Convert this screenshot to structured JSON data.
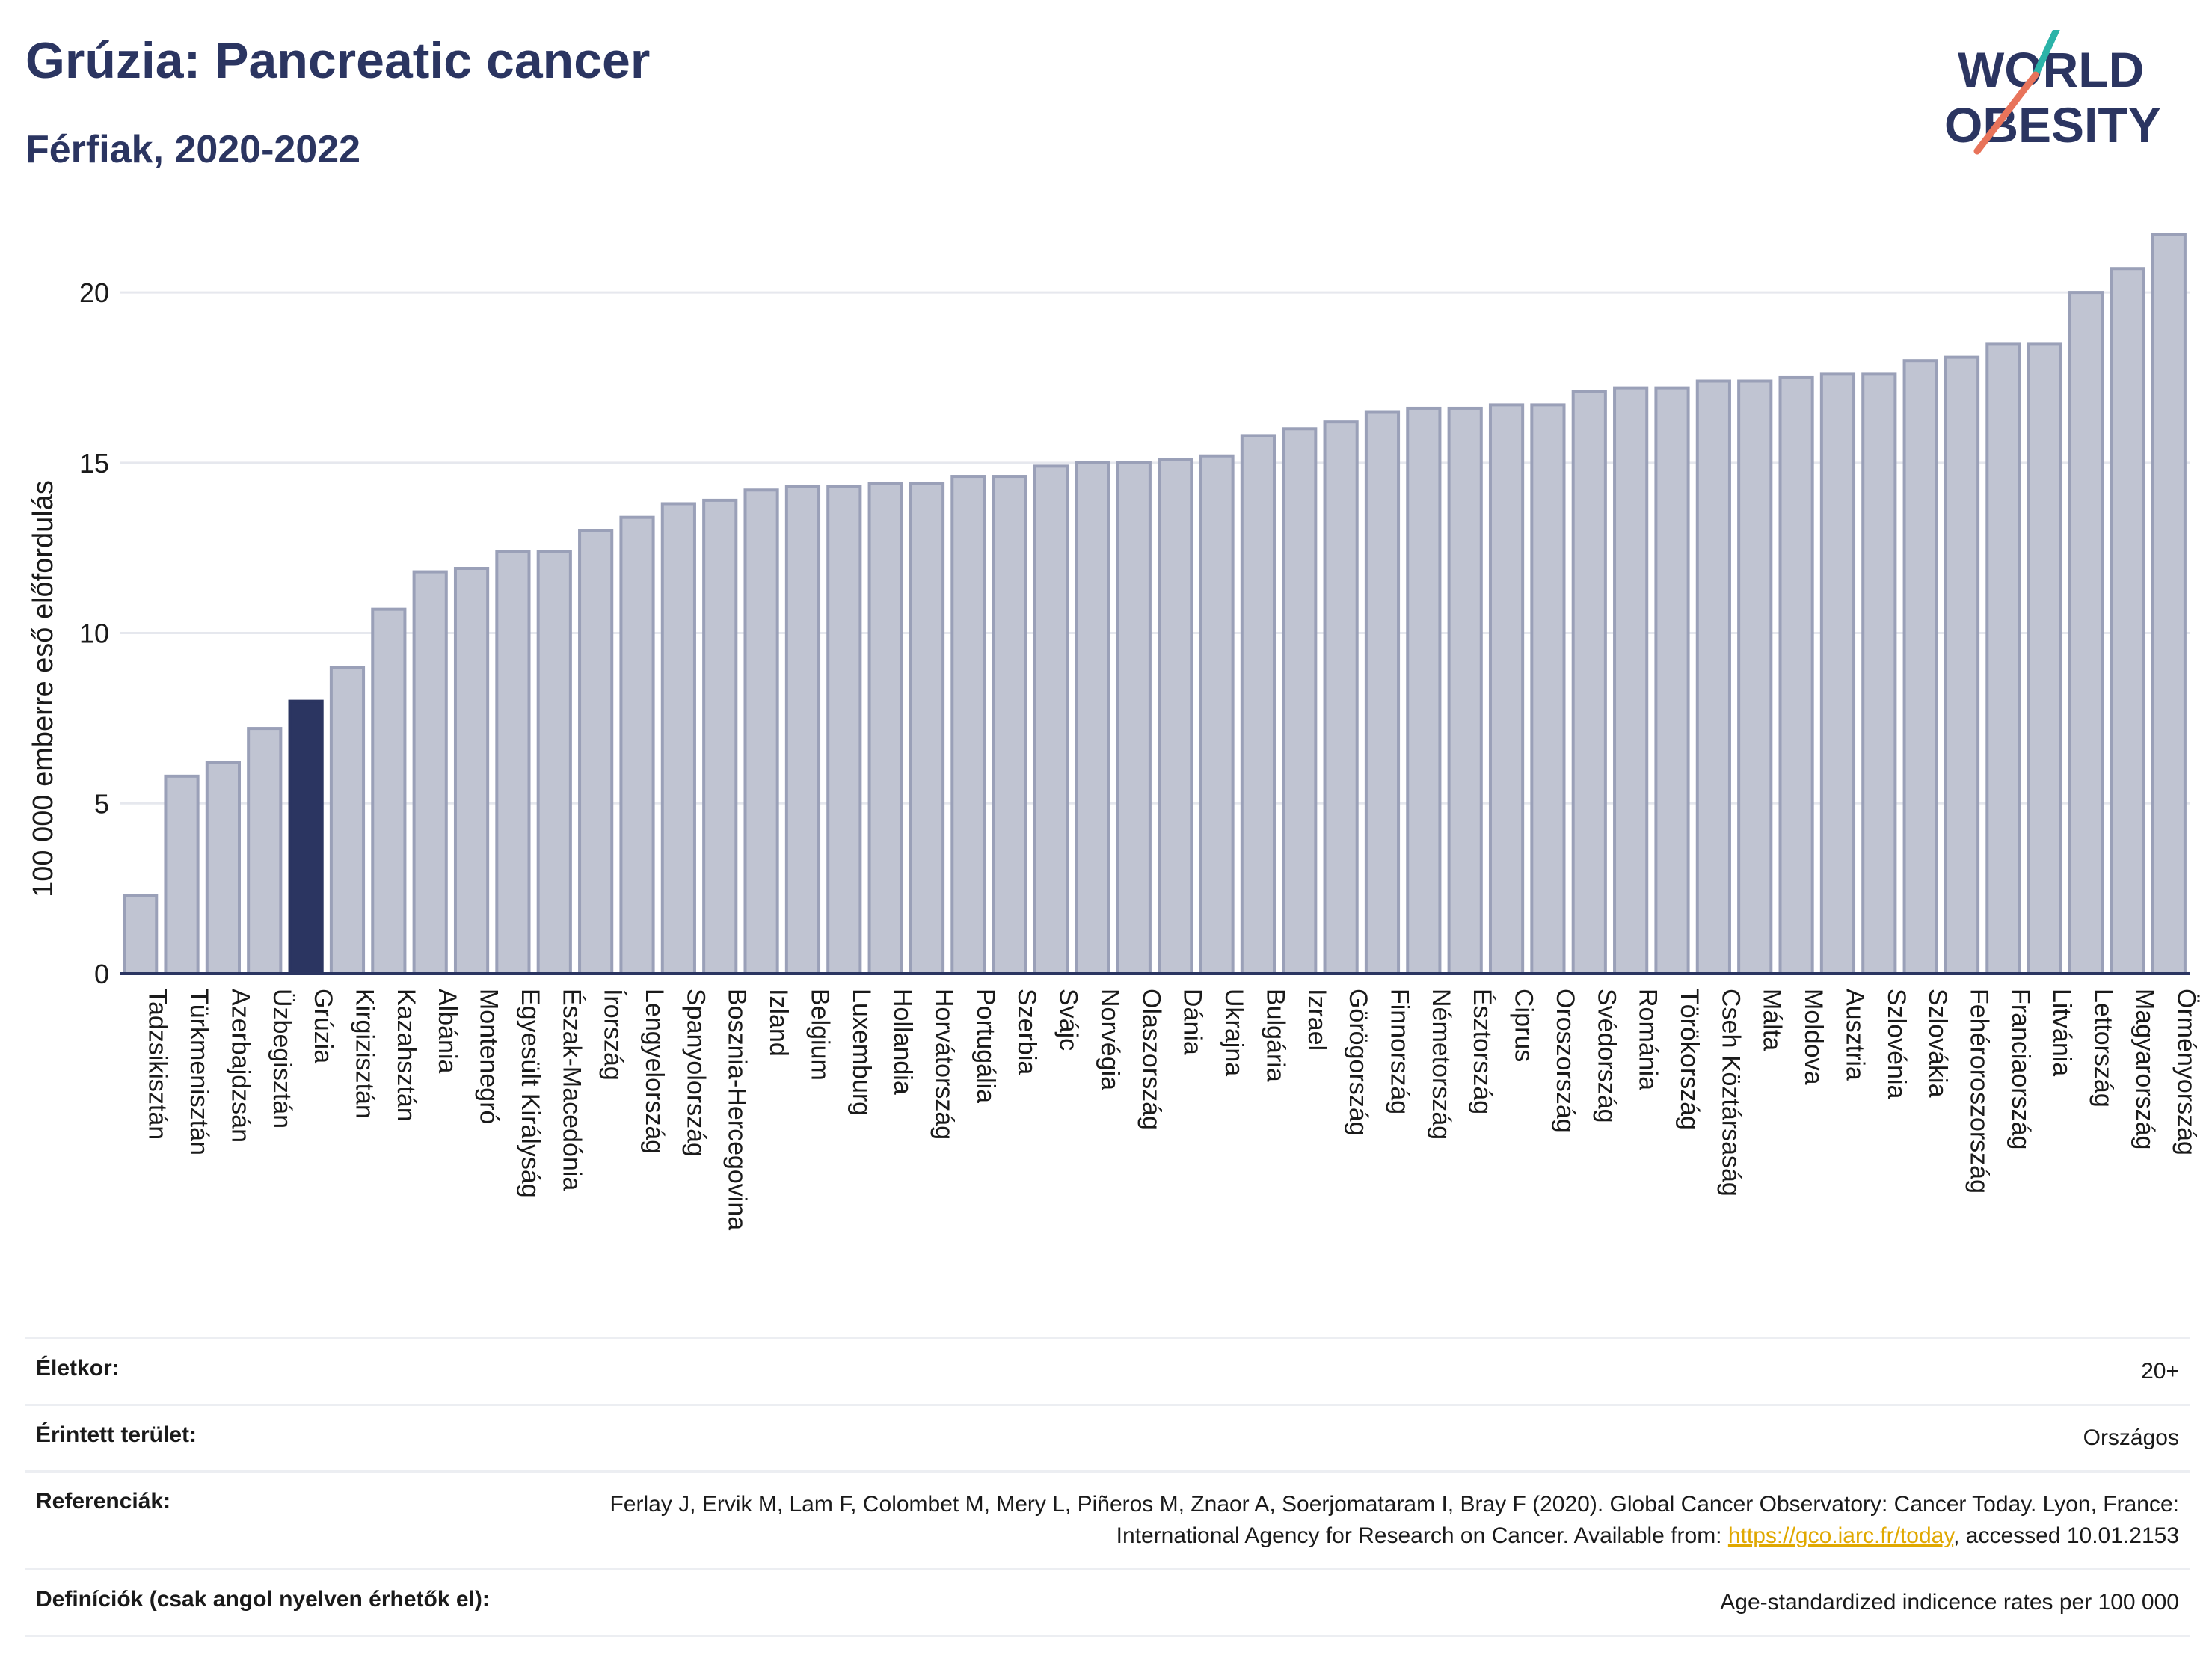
{
  "header": {
    "title": "Grúzia: Pancreatic cancer",
    "subtitle": "Férfiak, 2020-2022"
  },
  "logo": {
    "line1": "WORLD",
    "line2": "OBESITY",
    "accent_color": "#e8735a",
    "accent_color2": "#2bb3a8"
  },
  "colors": {
    "bar": "#c0c4d2",
    "bar_edge": "#9aa0b8",
    "highlight": "#2b3561",
    "text": "#2b3561"
  },
  "chart_data": {
    "type": "bar",
    "ylabel": "100 000 emberre eső előfordulás",
    "ylim": [
      0,
      22
    ],
    "yticks": [
      0,
      5,
      10,
      15,
      20
    ],
    "grid": true,
    "highlight": "Grúzia",
    "categories": [
      "Tadzsikisztán",
      "Türkmenisztán",
      "Azerbajdzsán",
      "Üzbegisztán",
      "Grúzia",
      "Kirgizisztán",
      "Kazahsztán",
      "Albánia",
      "Montenegró",
      "Egyesült Királyság",
      "Észak-Macedónia",
      "Írország",
      "Lengyelország",
      "Spanyolország",
      "Bosznia-Hercegovina",
      "Izland",
      "Belgium",
      "Luxemburg",
      "Hollandia",
      "Horvátország",
      "Portugália",
      "Szerbia",
      "Svájc",
      "Norvégia",
      "Olaszország",
      "Dánia",
      "Ukrajna",
      "Bulgária",
      "Izrael",
      "Görögország",
      "Finnország",
      "Németország",
      "Észtország",
      "Ciprus",
      "Oroszország",
      "Svédország",
      "Románia",
      "Törökország",
      "Cseh Köztársaság",
      "Málta",
      "Moldova",
      "Ausztria",
      "Szlovénia",
      "Szlovákia",
      "Fehéroroszország",
      "Franciaország",
      "Litvánia",
      "Lettország",
      "Magyarország",
      "Örményország"
    ],
    "values": [
      2.3,
      5.8,
      6.2,
      7.2,
      8.0,
      9.0,
      10.7,
      11.8,
      11.9,
      12.4,
      12.4,
      13.0,
      13.4,
      13.8,
      13.9,
      14.2,
      14.3,
      14.3,
      14.4,
      14.4,
      14.6,
      14.6,
      14.9,
      15.0,
      15.0,
      15.1,
      15.2,
      15.8,
      16.0,
      16.2,
      16.5,
      16.6,
      16.6,
      16.7,
      16.7,
      17.1,
      17.2,
      17.2,
      17.4,
      17.4,
      17.5,
      17.6,
      17.6,
      18.0,
      18.1,
      18.5,
      18.5,
      20.0,
      20.7,
      21.7
    ]
  },
  "info": {
    "age_label": "Életkor:",
    "age_value": "20+",
    "area_label": "Érintett terület:",
    "area_value": "Országos",
    "ref_label": "Referenciák:",
    "ref_text": "Ferlay J, Ervik M, Lam F, Colombet M, Mery L, Piñeros M, Znaor A, Soerjomataram I, Bray F (2020). Global Cancer Observatory: Cancer Today. Lyon, France: International Agency for Research on Cancer. Available from: ",
    "ref_link": "https://gco.iarc.fr/today",
    "ref_suffix": ", accessed 10.01.2153",
    "def_label": "Definíciók (csak angol nyelven érhetők el):",
    "def_value": "Age-standardized indicence rates per 100 000"
  }
}
